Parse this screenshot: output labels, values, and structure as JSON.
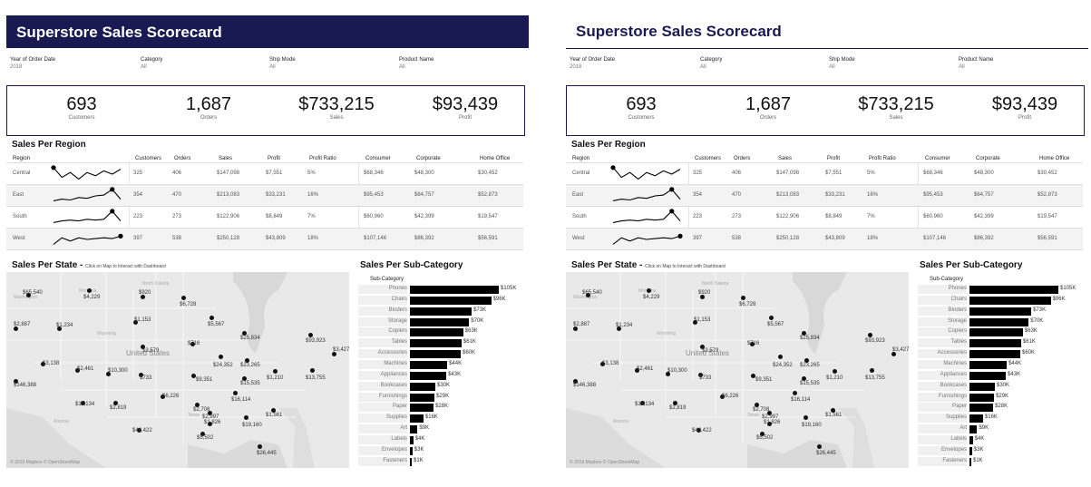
{
  "title": "Superstore Sales Scorecard",
  "filters": [
    {
      "label": "Year of Order Date",
      "value": "2018"
    },
    {
      "label": "Category",
      "value": "All"
    },
    {
      "label": "Ship Mode",
      "value": "All"
    },
    {
      "label": "Product Name",
      "value": "All"
    }
  ],
  "kpis": [
    {
      "value": "693",
      "label": "Customers"
    },
    {
      "value": "1,687",
      "label": "Orders"
    },
    {
      "value": "$733,215",
      "label": "Sales"
    },
    {
      "value": "$93,439",
      "label": "Profit"
    }
  ],
  "region": {
    "title": "Sales Per Region",
    "headers": [
      "Region",
      "Customers",
      "Orders",
      "Sales",
      "Profit",
      "Profit Ratio",
      "Consumer",
      "Corporate",
      "Home Office"
    ],
    "rows": [
      {
        "name": "Central",
        "cells": [
          "325",
          "406",
          "$147,098",
          "$7,551",
          "5%",
          "$68,346",
          "$48,300",
          "$30,452"
        ],
        "spark": [
          0.9,
          0.3,
          0.6,
          0.2,
          0.6,
          0.4,
          0.7,
          0.5,
          0.8
        ]
      },
      {
        "name": "East",
        "cells": [
          "354",
          "470",
          "$213,083",
          "$33,231",
          "16%",
          "$95,453",
          "$64,757",
          "$52,873"
        ],
        "spark": [
          0.2,
          0.3,
          0.25,
          0.4,
          0.35,
          0.5,
          0.55,
          0.9,
          0.3
        ]
      },
      {
        "name": "South",
        "cells": [
          "223",
          "273",
          "$122,906",
          "$8,849",
          "7%",
          "$60,960",
          "$42,399",
          "$19,547"
        ],
        "spark": [
          0.2,
          0.3,
          0.35,
          0.3,
          0.4,
          0.35,
          0.4,
          0.9,
          0.3
        ]
      },
      {
        "name": "West",
        "cells": [
          "397",
          "538",
          "$250,128",
          "$43,809",
          "18%",
          "$107,146",
          "$86,392",
          "$56,591"
        ],
        "spark": [
          0.2,
          0.6,
          0.4,
          0.6,
          0.5,
          0.55,
          0.6,
          0.55,
          0.7
        ]
      }
    ]
  },
  "state": {
    "title": "Sales Per State - ",
    "subtitle": "Click on Map to Interact with Dashboard",
    "credit": "© 2019 Mapbox © OpenStreetMap",
    "state_names": [
      "Washington",
      "Montana",
      "North Dakota",
      "Wyoming",
      "United States",
      "Texas",
      "Arizona"
    ],
    "labels": [
      "$65,540",
      "$4,229",
      "$920",
      "$6,728",
      "$1,153",
      "$5,567",
      "$2,887",
      "$1,234",
      "$25,834",
      "$716",
      "$3,579",
      "$93,923",
      "$3,427",
      "$3,138",
      "$2,461",
      "$10,300",
      "$24,352",
      "$23,265",
      "$733",
      "$9,351",
      "$1,210",
      "$13,755",
      "$146,388",
      "$15,535",
      "$6,226",
      "$16,114",
      "$11,134",
      "$2,819",
      "$2,708",
      "$2,997",
      "$1,561",
      "$1,826",
      "$19,160",
      "$43,422",
      "$5,502",
      "$26,445"
    ]
  },
  "subcategory": {
    "title": "Sales Per Sub-Category",
    "header": "Sub-Category",
    "items": [
      {
        "name": "Phones",
        "value": 105,
        "label": "$105K"
      },
      {
        "name": "Chairs",
        "value": 96,
        "label": "$96K"
      },
      {
        "name": "Binders",
        "value": 73,
        "label": "$73K"
      },
      {
        "name": "Storage",
        "value": 70,
        "label": "$70K"
      },
      {
        "name": "Copiers",
        "value": 63,
        "label": "$63K"
      },
      {
        "name": "Tables",
        "value": 61,
        "label": "$61K"
      },
      {
        "name": "Accessories",
        "value": 60,
        "label": "$60K"
      },
      {
        "name": "Machines",
        "value": 44,
        "label": "$44K"
      },
      {
        "name": "Appliances",
        "value": 43,
        "label": "$43K"
      },
      {
        "name": "Bookcases",
        "value": 30,
        "label": "$30K"
      },
      {
        "name": "Furnishings",
        "value": 29,
        "label": "$29K"
      },
      {
        "name": "Paper",
        "value": 28,
        "label": "$28K"
      },
      {
        "name": "Supplies",
        "value": 16,
        "label": "$16K"
      },
      {
        "name": "Art",
        "value": 9,
        "label": "$9K"
      },
      {
        "name": "Labels",
        "value": 4,
        "label": "$4K"
      },
      {
        "name": "Envelopes",
        "value": 3,
        "label": "$3K"
      },
      {
        "name": "Fasteners",
        "value": 1,
        "label": "$1K"
      }
    ]
  },
  "colors": {
    "header_navy": "#1a1a52",
    "bar": "#000000",
    "map_bg": "#e8e8e8"
  }
}
